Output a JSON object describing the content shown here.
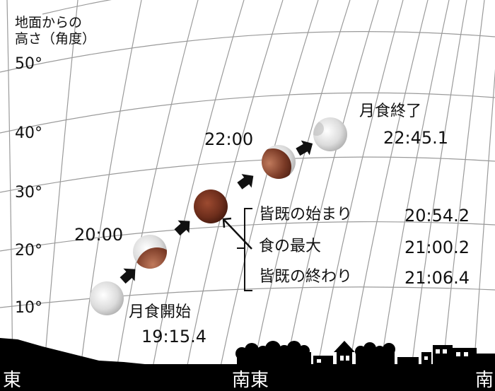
{
  "axis": {
    "title_line1": "地面からの",
    "title_line2": "高さ（角度）",
    "ticks": [
      "50°",
      "40°",
      "30°",
      "20°",
      "10°"
    ]
  },
  "directions": {
    "east": "東",
    "southeast": "南東",
    "south": "南"
  },
  "events": {
    "start_label": "月食開始",
    "start_time": "19:15.4",
    "end_label": "月食終了",
    "end_time": "22:45.1",
    "time_2000": "20:00",
    "time_2200": "22:00"
  },
  "totality": {
    "items": [
      {
        "label": "皆既の始まり",
        "time": "20:54.2"
      },
      {
        "label": "食の最大",
        "time": "21:00.2"
      },
      {
        "label": "皆既の終わり",
        "time": "21:06.4"
      }
    ]
  },
  "colors": {
    "grid": "#9a9a9a",
    "ground": "#000000",
    "umbra": "#6a2c1c",
    "moon": "#e6e6e6",
    "arrow": "#111111"
  }
}
